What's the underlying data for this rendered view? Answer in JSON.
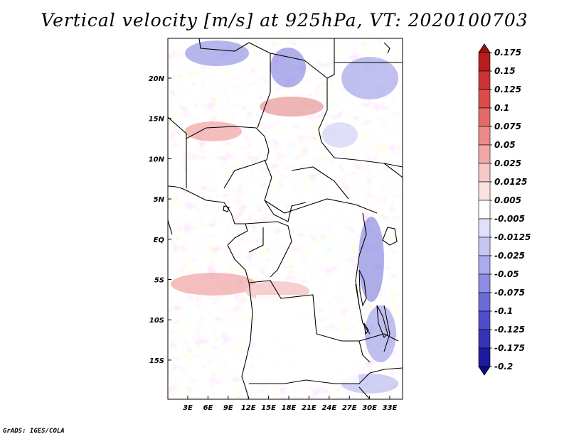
{
  "title": "Vertical velocity [m/s] at 925hPa, VT: 2020100703",
  "credit": "GrADS: IGES/COLA",
  "map": {
    "lat_labels": [
      "20N",
      "15N",
      "10N",
      "5N",
      "EQ",
      "5S",
      "10S",
      "15S"
    ],
    "lon_labels": [
      "3E",
      "6E",
      "9E",
      "12E",
      "15E",
      "18E",
      "21E",
      "24E",
      "27E",
      "30E",
      "33E"
    ],
    "lat_range": [
      -20,
      25
    ],
    "lon_range": [
      0,
      35
    ]
  },
  "colorbar": {
    "labels": [
      "0.175",
      "0.15",
      "0.125",
      "0.1",
      "0.075",
      "0.05",
      "0.025",
      "0.0125",
      "0.005",
      "-0.005",
      "-0.0125",
      "-0.025",
      "-0.05",
      "-0.075",
      "-0.1",
      "-0.125",
      "-0.175",
      "-0.2"
    ],
    "colors": [
      "#9a0f0f",
      "#b81c1c",
      "#cc3232",
      "#dc4a4a",
      "#e46a6a",
      "#ec8a8a",
      "#f2a8a8",
      "#f7c6c6",
      "#fbe2e2",
      "#ffffff",
      "#e0e0fb",
      "#c6c6f5",
      "#aaaaee",
      "#8c8ce4",
      "#6c6cd8",
      "#4e4ecc",
      "#3434b8",
      "#1c1ca0",
      "#0b0b80"
    ]
  }
}
